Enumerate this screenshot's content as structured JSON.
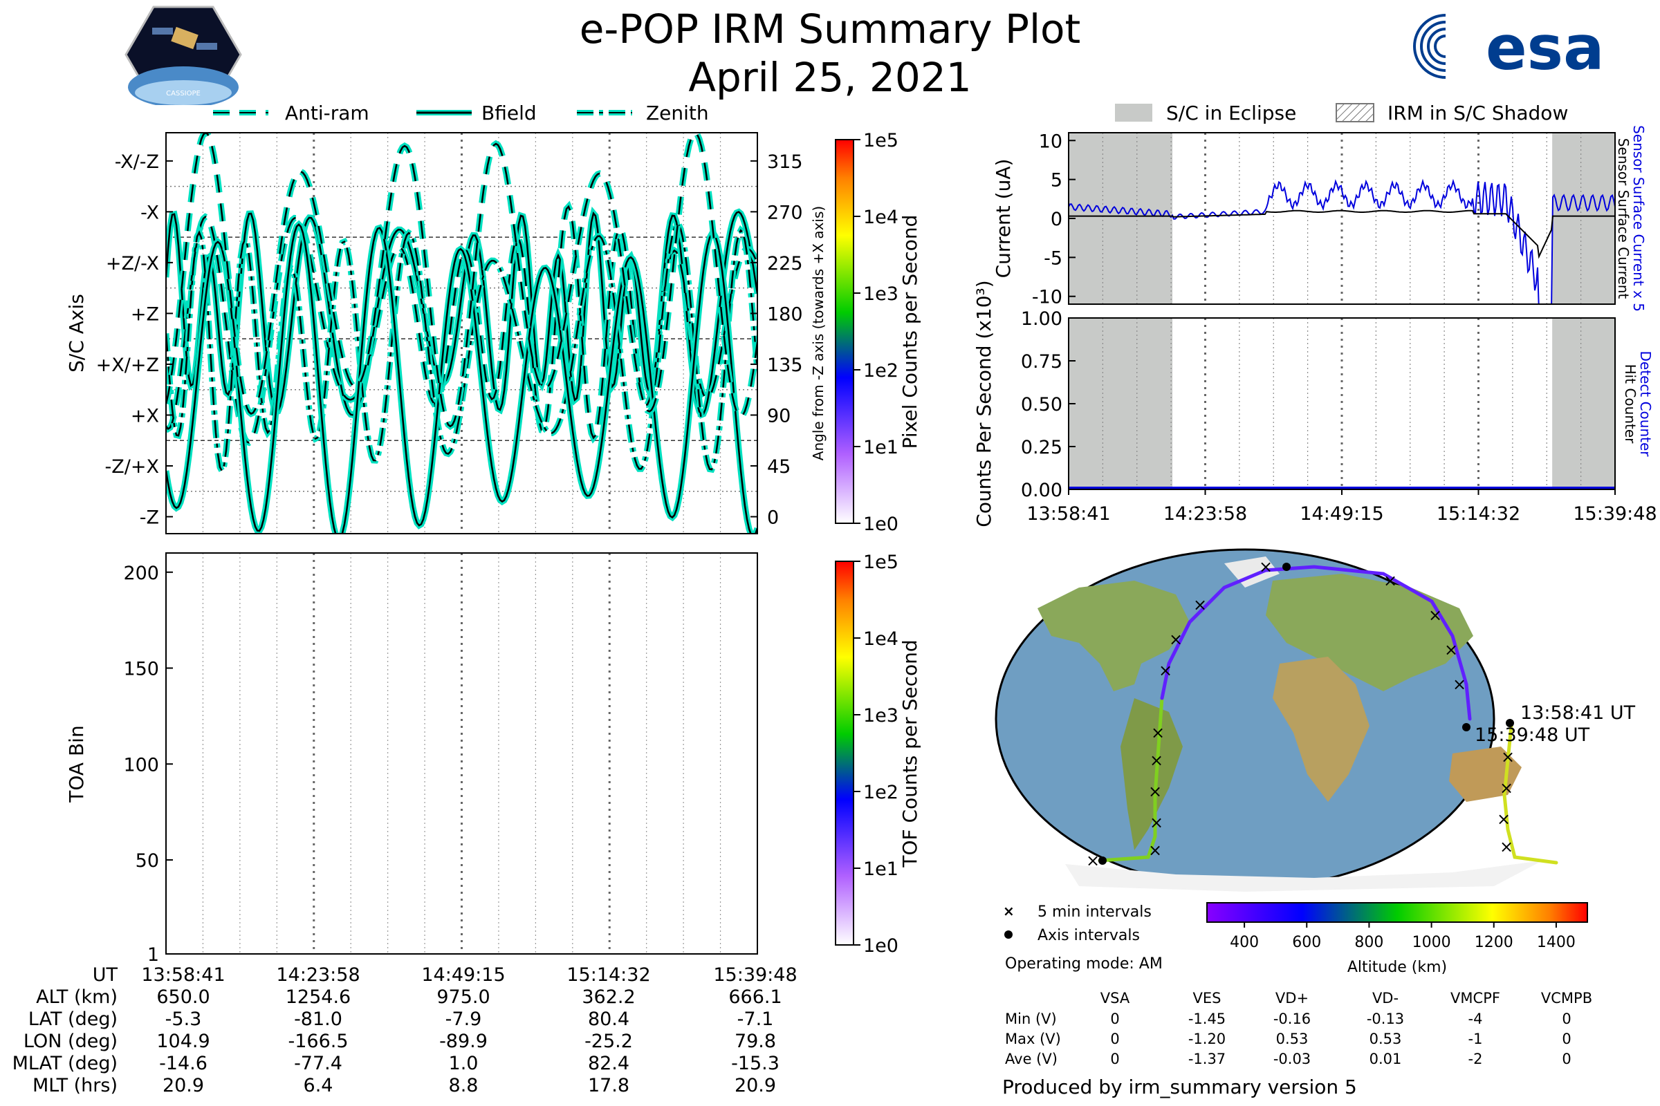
{
  "header": {
    "title": "e-POP IRM Summary Plot",
    "date": "April 25, 2021",
    "left_logo_text": "CASSIOPE",
    "esa_logo_text": "esa"
  },
  "legend_top_left": {
    "items": [
      "Anti-ram",
      "Bfield",
      "Zenith"
    ]
  },
  "legend_top_right": {
    "items": [
      "S/C in Eclipse",
      "IRM in S/C Shadow"
    ]
  },
  "colors": {
    "trace": "#00e0c0",
    "eclipse": "#c8cac8",
    "sensor": "#0000dd",
    "hit": "#0000dd",
    "black": "#000000"
  },
  "chart_data": [
    {
      "id": "sc-axis",
      "type": "line",
      "ylabel": "S/C Axis",
      "ylabel_right": "Angle from -Z axis (towards +X axis)",
      "ytick_labels": [
        "-X/-Z",
        "-X",
        "+Z/-X",
        "+Z",
        "+X/+Z",
        "+X",
        "-Z/+X",
        "-Z"
      ],
      "ytick_values": [
        315,
        270,
        225,
        180,
        135,
        90,
        45,
        0
      ],
      "ylim": [
        -15,
        340
      ],
      "series": [
        {
          "name": "Anti-ram",
          "style": "dashed"
        },
        {
          "name": "Bfield",
          "style": "solid"
        },
        {
          "name": "Zenith",
          "style": "dashdot"
        }
      ],
      "colorbar": {
        "label": "Pixel Counts per Second",
        "ticks": [
          "1e5",
          "1e4",
          "1e3",
          "1e2",
          "1e1",
          "1e0"
        ]
      }
    },
    {
      "id": "toa",
      "type": "heatmap",
      "ylabel": "TOA Bin",
      "yticks": [
        200,
        150,
        100,
        50,
        1
      ],
      "ylim": [
        1,
        210
      ],
      "colorbar": {
        "label": "TOF Counts per Second",
        "ticks": [
          "1e5",
          "1e4",
          "1e3",
          "1e2",
          "1e1",
          "1e0"
        ]
      }
    },
    {
      "id": "current",
      "type": "line",
      "ylabel": "Current (uA)",
      "yticks": [
        10,
        5,
        0,
        -5,
        -10
      ],
      "ylim": [
        -11,
        11
      ],
      "right_label_blue": "Sensor Surface Current x 5",
      "right_label_black": "Sensor Surface Current",
      "eclipse_spans": [
        [
          0.0,
          0.19
        ],
        [
          0.885,
          1.0
        ]
      ]
    },
    {
      "id": "counts",
      "type": "line",
      "ylabel": "Counts Per Second (x10³)",
      "yticks": [
        "1.00",
        "0.75",
        "0.50",
        "0.25",
        "0.00"
      ],
      "ytick_values": [
        1.0,
        0.75,
        0.5,
        0.25,
        0.0
      ],
      "ylim": [
        0,
        1
      ],
      "right_label_blue": "Detect Counter",
      "right_label_black": "Hit Counter",
      "xtick_labels": [
        "13:58:41",
        "14:23:58",
        "14:49:15",
        "15:14:32",
        "15:39:48"
      ]
    },
    {
      "id": "map",
      "type": "scatter",
      "start_label": "13:58:41 UT",
      "end_label": "15:39:48 UT",
      "legend": [
        "5 min intervals",
        "Axis intervals"
      ],
      "colorbar": {
        "label": "Altitude (km)",
        "ticks": [
          400,
          600,
          800,
          1000,
          1200,
          1400
        ]
      }
    }
  ],
  "ephemeris": {
    "row_labels": [
      "UT",
      "ALT (km)",
      "LAT (deg)",
      "LON (deg)",
      "MLAT (deg)",
      "MLT (hrs)"
    ],
    "columns": [
      [
        "13:58:41",
        "650.0",
        "-5.3",
        "104.9",
        "-14.6",
        "20.9"
      ],
      [
        "14:23:58",
        "1254.6",
        "-81.0",
        "-166.5",
        "-77.4",
        "6.4"
      ],
      [
        "14:49:15",
        "975.0",
        "-7.9",
        "-89.9",
        "1.0",
        "8.8"
      ],
      [
        "15:14:32",
        "362.2",
        "80.4",
        "-25.2",
        "82.4",
        "17.8"
      ],
      [
        "15:39:48",
        "666.1",
        "-7.1",
        "79.8",
        "-15.3",
        "20.9"
      ]
    ]
  },
  "operating_mode": "Operating mode: AM",
  "voltages": {
    "headers": [
      "VSA",
      "VES",
      "VD+",
      "VD-",
      "VMCPF",
      "VCMPB"
    ],
    "rows": [
      {
        "label": "Min (V)",
        "values": [
          "0",
          "-1.45",
          "-0.16",
          "-0.13",
          "-4",
          "0"
        ]
      },
      {
        "label": "Max (V)",
        "values": [
          "0",
          "-1.20",
          "0.53",
          "0.53",
          "-1",
          "0"
        ]
      },
      {
        "label": "Ave (V)",
        "values": [
          "0",
          "-1.37",
          "-0.03",
          "0.01",
          "-2",
          "0"
        ]
      }
    ]
  },
  "footer": "Produced by irm_summary version 5"
}
